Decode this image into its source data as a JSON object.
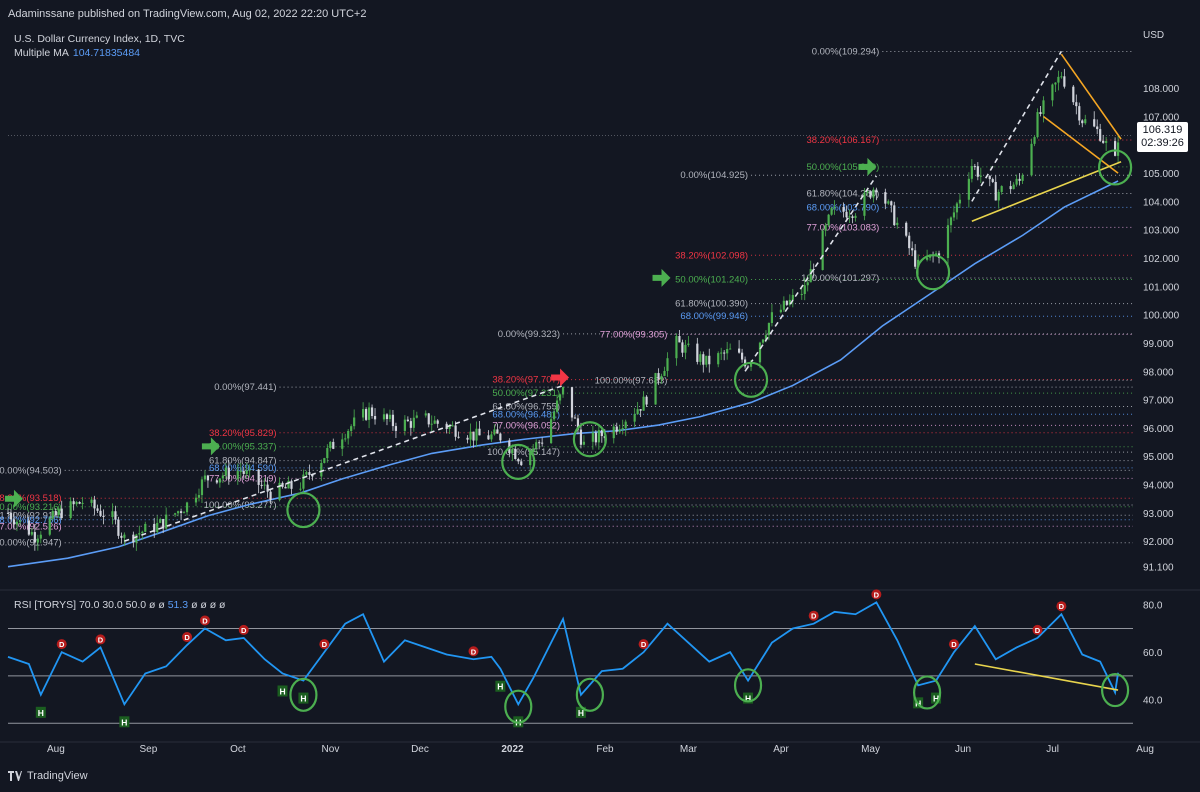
{
  "header": {
    "credit": "Adaminssane published on TradingView.com, Aug 02, 2022 22:20 UTC+2",
    "symbol": "U.S. Dollar Currency Index, 1D, TVC",
    "ma_label": "Multiple MA",
    "ma_value": "104.71835484"
  },
  "rsi_legend": {
    "label": "RSI [TORYS]",
    "params": "70.0  30.0  50.0  ø  ø",
    "value": "51.3",
    "tail": "ø  ø  ø  ø"
  },
  "price_tag": {
    "price": "106.319",
    "countdown": "02:39:26"
  },
  "footer": {
    "brand": "TradingView"
  },
  "colors": {
    "background": "#131722",
    "bull": "#4caf50",
    "bear": "#d1d4dc",
    "ma": "#5b9cf6",
    "fib_red": "#f23645",
    "fib_green": "#4caf50",
    "fib_blue": "#5b9cf6",
    "fib_white": "#b2b5be",
    "annot_green": "#4caf50",
    "annot_yellow": "#e8d44d",
    "annot_orange": "#f5a623"
  },
  "icons": [
    "green-arrow-icon",
    "red-arrow-icon",
    "green-circle-icon",
    "tradingview-logo-icon"
  ],
  "chart_data": [
    {
      "type": "candlestick",
      "title": "U.S. Dollar Currency Index, 1D, TVC",
      "currency_label": "USD",
      "y_ticks": [
        "108.000",
        "107.000",
        "105.000",
        "104.000",
        "103.000",
        "102.000",
        "101.000",
        "100.000",
        "99.000",
        "98.000",
        "97.000",
        "96.000",
        "95.000",
        "94.000",
        "93.000",
        "92.000",
        "91.100"
      ],
      "y_tick_values": [
        108,
        107,
        105,
        104,
        103,
        102,
        101,
        100,
        99,
        98,
        97,
        96,
        95,
        94,
        93,
        92,
        91.1
      ],
      "ylim": [
        90.7,
        109.7
      ],
      "x_labels": [
        "Aug",
        "Sep",
        "Oct",
        "Nov",
        "Dec",
        "2022",
        "Feb",
        "Mar",
        "Apr",
        "May",
        "Jun",
        "Jul",
        "Aug"
      ],
      "x_dates": [
        "2021-08-01",
        "2021-09-01",
        "2021-10-01",
        "2021-11-01",
        "2021-12-01",
        "2022-01-01",
        "2022-02-01",
        "2022-03-01",
        "2022-04-01",
        "2022-05-01",
        "2022-06-01",
        "2022-07-01",
        "2022-08-01"
      ],
      "close_path": [
        [
          "2021-07-26",
          93.0
        ],
        [
          "2021-08-04",
          92.2
        ],
        [
          "2021-08-12",
          93.0
        ],
        [
          "2021-08-20",
          93.4
        ],
        [
          "2021-08-30",
          92.8
        ],
        [
          "2021-09-03",
          92.1
        ],
        [
          "2021-09-15",
          92.6
        ],
        [
          "2021-09-24",
          93.3
        ],
        [
          "2021-09-30",
          94.2
        ],
        [
          "2021-10-12",
          94.5
        ],
        [
          "2021-10-22",
          93.7
        ],
        [
          "2021-11-01",
          94.0
        ],
        [
          "2021-11-08",
          94.9
        ],
        [
          "2021-11-15",
          95.8
        ],
        [
          "2021-11-24",
          96.6
        ],
        [
          "2021-12-03",
          96.1
        ],
        [
          "2021-12-13",
          96.3
        ],
        [
          "2021-12-22",
          96.0
        ],
        [
          "2021-12-30",
          95.7
        ],
        [
          "2022-01-07",
          95.7
        ],
        [
          "2022-01-14",
          94.9
        ],
        [
          "2022-01-21",
          95.6
        ],
        [
          "2022-01-28",
          97.3
        ],
        [
          "2022-02-04",
          95.4
        ],
        [
          "2022-02-14",
          96.0
        ],
        [
          "2022-02-24",
          96.9
        ],
        [
          "2022-03-07",
          99.0
        ],
        [
          "2022-03-17",
          98.3
        ],
        [
          "2022-03-25",
          98.7
        ],
        [
          "2022-03-31",
          98.3
        ],
        [
          "2022-04-08",
          99.9
        ],
        [
          "2022-04-19",
          100.9
        ],
        [
          "2022-04-28",
          103.6
        ],
        [
          "2022-05-06",
          103.7
        ],
        [
          "2022-05-13",
          104.6
        ],
        [
          "2022-05-20",
          103.2
        ],
        [
          "2022-05-27",
          101.7
        ],
        [
          "2022-06-03",
          102.2
        ],
        [
          "2022-06-14",
          105.3
        ],
        [
          "2022-06-22",
          104.3
        ],
        [
          "2022-06-30",
          104.7
        ],
        [
          "2022-07-06",
          106.9
        ],
        [
          "2022-07-14",
          108.5
        ],
        [
          "2022-07-21",
          106.9
        ],
        [
          "2022-07-27",
          106.4
        ],
        [
          "2022-08-01",
          105.4
        ],
        [
          "2022-08-02",
          106.3
        ]
      ],
      "moving_average": [
        [
          "2021-07-26",
          91.1
        ],
        [
          "2021-08-15",
          91.4
        ],
        [
          "2021-09-01",
          91.8
        ],
        [
          "2021-09-15",
          92.3
        ],
        [
          "2021-10-01",
          92.9
        ],
        [
          "2021-10-15",
          93.3
        ],
        [
          "2021-11-01",
          93.7
        ],
        [
          "2021-11-15",
          94.2
        ],
        [
          "2021-12-01",
          94.7
        ],
        [
          "2021-12-15",
          95.1
        ],
        [
          "2022-01-01",
          95.4
        ],
        [
          "2022-01-15",
          95.6
        ],
        [
          "2022-02-01",
          95.8
        ],
        [
          "2022-02-15",
          95.9
        ],
        [
          "2022-03-01",
          96.1
        ],
        [
          "2022-03-15",
          96.4
        ],
        [
          "2022-04-01",
          96.9
        ],
        [
          "2022-04-15",
          97.5
        ],
        [
          "2022-05-01",
          98.4
        ],
        [
          "2022-05-15",
          99.6
        ],
        [
          "2022-06-01",
          100.8
        ],
        [
          "2022-06-15",
          101.8
        ],
        [
          "2022-07-01",
          102.8
        ],
        [
          "2022-07-15",
          103.8
        ],
        [
          "2022-08-02",
          104.72
        ]
      ],
      "current_price": 106.319,
      "fib_levels": [
        {
          "label": "0.00%(109.294)",
          "value": 109.294,
          "color": "white",
          "date": "2022-05-15"
        },
        {
          "label": "38.20%(106.167)",
          "value": 106.167,
          "color": "red",
          "date": "2022-05-15"
        },
        {
          "label": "50.00%(105.220)",
          "value": 105.22,
          "color": "green",
          "date": "2022-05-15"
        },
        {
          "label": "0.00%(104.925)",
          "value": 104.925,
          "color": "white",
          "date": "2022-04-01"
        },
        {
          "label": "61.80%(104.280)",
          "value": 104.28,
          "color": "white",
          "date": "2022-05-15"
        },
        {
          "label": "68.00%(103.790)",
          "value": 103.79,
          "color": "blue",
          "date": "2022-05-15"
        },
        {
          "label": "77.00%(103.083)",
          "value": 103.083,
          "color": "pink",
          "date": "2022-05-15"
        },
        {
          "label": "38.20%(102.098)",
          "value": 102.098,
          "color": "red",
          "date": "2022-04-01"
        },
        {
          "label": "50.00%(101.240)",
          "value": 101.24,
          "color": "green",
          "date": "2022-04-01"
        },
        {
          "label": "100.00%(101.297)",
          "value": 101.297,
          "color": "white",
          "date": "2022-05-15"
        },
        {
          "label": "61.80%(100.390)",
          "value": 100.39,
          "color": "white",
          "date": "2022-04-01"
        },
        {
          "label": "68.00%(99.946)",
          "value": 99.946,
          "color": "blue",
          "date": "2022-04-01"
        },
        {
          "label": "0.00%(99.323)",
          "value": 99.323,
          "color": "white",
          "date": "2022-01-28"
        },
        {
          "label": "77.00%(99.305)",
          "value": 99.305,
          "color": "pink",
          "date": "2022-03-05"
        },
        {
          "label": "38.20%(97.707)",
          "value": 97.707,
          "color": "red",
          "date": "2022-01-28"
        },
        {
          "label": "100.00%(97.683)",
          "value": 97.683,
          "color": "white",
          "date": "2022-03-05"
        },
        {
          "label": "0.00%(97.441)",
          "value": 97.441,
          "color": "white",
          "date": "2021-10-25"
        },
        {
          "label": "50.00%(97.231)",
          "value": 97.231,
          "color": "green",
          "date": "2022-01-28"
        },
        {
          "label": "61.80%(96.755)",
          "value": 96.755,
          "color": "white",
          "date": "2022-01-28"
        },
        {
          "label": "68.00%(96.481)",
          "value": 96.481,
          "color": "blue",
          "date": "2022-01-28"
        },
        {
          "label": "77.00%(96.092)",
          "value": 96.092,
          "color": "pink",
          "date": "2022-01-28"
        },
        {
          "label": "38.20%(95.829)",
          "value": 95.829,
          "color": "red",
          "date": "2021-10-25"
        },
        {
          "label": "50.00%(95.337)",
          "value": 95.337,
          "color": "green",
          "date": "2021-10-25"
        },
        {
          "label": "100.00%(95.147)",
          "value": 95.147,
          "color": "white",
          "date": "2022-01-28"
        },
        {
          "label": "61.80%(94.847)",
          "value": 94.847,
          "color": "white",
          "date": "2021-10-25"
        },
        {
          "label": "68.00%(94.590)",
          "value": 94.59,
          "color": "blue",
          "date": "2021-10-25"
        },
        {
          "label": "0.00%(94.503)",
          "value": 94.503,
          "color": "white",
          "date": "2021-08-14"
        },
        {
          "label": "77.00%(94.219)",
          "value": 94.219,
          "color": "pink",
          "date": "2021-10-25"
        },
        {
          "label": "38.20%(93.518)",
          "value": 93.518,
          "color": "red",
          "date": "2021-08-14"
        },
        {
          "label": "100.00%(93.277)",
          "value": 93.277,
          "color": "white",
          "date": "2021-10-25"
        },
        {
          "label": "50.00%(93.216)",
          "value": 93.216,
          "color": "green",
          "date": "2021-08-14"
        },
        {
          "label": "61.80%(92.914)",
          "value": 92.914,
          "color": "white",
          "date": "2021-08-14"
        },
        {
          "label": "68.00%(92.756)",
          "value": 92.756,
          "color": "blue",
          "date": "2021-08-14"
        },
        {
          "label": "77.00%(92.526)",
          "value": 92.526,
          "color": "pink",
          "date": "2021-08-14"
        },
        {
          "label": "100.00%(91.947)",
          "value": 91.947,
          "color": "white",
          "date": "2021-08-14"
        }
      ],
      "trend_lines": [
        {
          "color": "white_dashed",
          "from": [
            "2021-09-03",
            92.0
          ],
          "to": [
            "2022-01-28",
            97.5
          ]
        },
        {
          "color": "white_dashed",
          "from": [
            "2022-03-30",
            98.0
          ],
          "to": [
            "2022-05-13",
            104.9
          ]
        },
        {
          "color": "white_dashed",
          "from": [
            "2022-06-14",
            104.0
          ],
          "to": [
            "2022-07-14",
            109.3
          ]
        },
        {
          "color": "orange",
          "from": [
            "2022-07-14",
            109.2
          ],
          "to": [
            "2022-08-03",
            106.2
          ]
        },
        {
          "color": "orange",
          "from": [
            "2022-07-08",
            107.0
          ],
          "to": [
            "2022-08-02",
            105.0
          ]
        },
        {
          "color": "yellow",
          "from": [
            "2022-06-14",
            103.3
          ],
          "to": [
            "2022-08-03",
            105.4
          ]
        }
      ],
      "arrow_markers": [
        {
          "color": "green",
          "date": "2021-07-28",
          "value": 93.5
        },
        {
          "color": "green",
          "date": "2021-10-02",
          "value": 95.35
        },
        {
          "color": "red",
          "date": "2022-01-27",
          "value": 97.78
        },
        {
          "color": "green",
          "date": "2022-03-02",
          "value": 101.3
        },
        {
          "color": "green",
          "date": "2022-05-10",
          "value": 105.22
        }
      ],
      "circle_markers": [
        {
          "date": "2021-11-02",
          "value": 93.1
        },
        {
          "date": "2022-01-13",
          "value": 94.8
        },
        {
          "date": "2022-02-06",
          "value": 95.6
        },
        {
          "date": "2022-04-01",
          "value": 97.7
        },
        {
          "date": "2022-06-01",
          "value": 101.5
        },
        {
          "date": "2022-08-01",
          "value": 105.2
        }
      ]
    },
    {
      "type": "line",
      "title": "RSI [TORYS]",
      "y_ticks": [
        "80.0",
        "60.0",
        "40.0"
      ],
      "y_tick_values": [
        80,
        60,
        40
      ],
      "ylim": [
        28,
        82
      ],
      "bands": [
        70,
        50,
        30
      ],
      "values": [
        [
          "2021-07-26",
          58
        ],
        [
          "2021-08-02",
          55
        ],
        [
          "2021-08-06",
          42
        ],
        [
          "2021-08-13",
          60
        ],
        [
          "2021-08-20",
          56
        ],
        [
          "2021-08-26",
          62
        ],
        [
          "2021-09-03",
          38
        ],
        [
          "2021-09-10",
          51
        ],
        [
          "2021-09-17",
          54
        ],
        [
          "2021-09-24",
          63
        ],
        [
          "2021-09-30",
          70
        ],
        [
          "2021-10-07",
          65
        ],
        [
          "2021-10-13",
          66
        ],
        [
          "2021-10-20",
          57
        ],
        [
          "2021-10-26",
          51
        ],
        [
          "2021-11-02",
          48
        ],
        [
          "2021-11-09",
          60
        ],
        [
          "2021-11-16",
          72
        ],
        [
          "2021-11-22",
          76
        ],
        [
          "2021-11-29",
          56
        ],
        [
          "2021-12-06",
          65
        ],
        [
          "2021-12-13",
          62
        ],
        [
          "2021-12-20",
          59
        ],
        [
          "2021-12-29",
          57
        ],
        [
          "2022-01-04",
          58
        ],
        [
          "2022-01-07",
          53
        ],
        [
          "2022-01-13",
          38
        ],
        [
          "2022-01-18",
          49
        ],
        [
          "2022-01-28",
          74
        ],
        [
          "2022-02-03",
          42
        ],
        [
          "2022-02-10",
          52
        ],
        [
          "2022-02-17",
          53
        ],
        [
          "2022-02-24",
          60
        ],
        [
          "2022-03-04",
          72
        ],
        [
          "2022-03-11",
          64
        ],
        [
          "2022-03-18",
          56
        ],
        [
          "2022-03-25",
          60
        ],
        [
          "2022-03-31",
          48
        ],
        [
          "2022-04-08",
          64
        ],
        [
          "2022-04-15",
          70
        ],
        [
          "2022-04-22",
          72
        ],
        [
          "2022-04-29",
          77
        ],
        [
          "2022-05-06",
          76
        ],
        [
          "2022-05-13",
          81
        ],
        [
          "2022-05-20",
          65
        ],
        [
          "2022-05-27",
          46
        ],
        [
          "2022-06-02",
          48
        ],
        [
          "2022-06-08",
          60
        ],
        [
          "2022-06-15",
          71
        ],
        [
          "2022-06-22",
          57
        ],
        [
          "2022-06-29",
          62
        ],
        [
          "2022-07-06",
          66
        ],
        [
          "2022-07-14",
          76
        ],
        [
          "2022-07-21",
          59
        ],
        [
          "2022-07-27",
          56
        ],
        [
          "2022-08-01",
          43
        ],
        [
          "2022-08-02",
          51.3
        ]
      ],
      "divergence_line": {
        "color": "yellow",
        "from": [
          "2022-06-15",
          55
        ],
        "to": [
          "2022-08-02",
          44
        ]
      },
      "h_markers": [
        [
          "2021-08-06",
          42
        ],
        [
          "2021-09-03",
          38
        ],
        [
          "2021-10-26",
          51
        ],
        [
          "2021-11-02",
          48
        ],
        [
          "2022-01-07",
          53
        ],
        [
          "2022-01-13",
          38
        ],
        [
          "2022-02-03",
          42
        ],
        [
          "2022-03-31",
          48
        ],
        [
          "2022-05-27",
          46
        ],
        [
          "2022-06-02",
          48
        ]
      ],
      "d_markers": [
        [
          "2021-08-13",
          60
        ],
        [
          "2021-08-26",
          62
        ],
        [
          "2021-09-24",
          63
        ],
        [
          "2021-09-30",
          70
        ],
        [
          "2021-10-13",
          66
        ],
        [
          "2021-11-09",
          60
        ],
        [
          "2021-12-29",
          57
        ],
        [
          "2022-02-24",
          60
        ],
        [
          "2022-04-22",
          72
        ],
        [
          "2022-05-13",
          81
        ],
        [
          "2022-06-08",
          60
        ],
        [
          "2022-07-06",
          66
        ],
        [
          "2022-07-14",
          76
        ]
      ],
      "circle_markers": [
        [
          "2021-11-02",
          42
        ],
        [
          "2022-01-13",
          37
        ],
        [
          "2022-02-06",
          42
        ],
        [
          "2022-03-31",
          46
        ],
        [
          "2022-05-30",
          43
        ],
        [
          "2022-08-01",
          44
        ]
      ]
    }
  ]
}
